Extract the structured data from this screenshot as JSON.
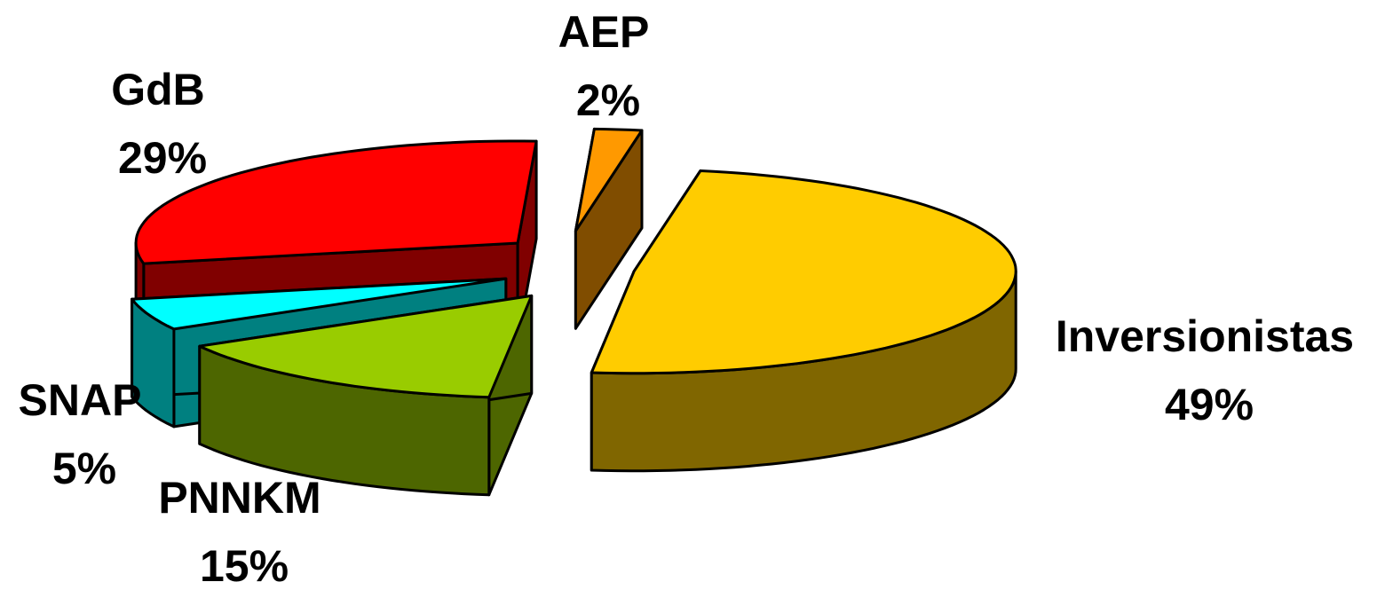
{
  "chart_data": {
    "type": "pie",
    "categories": [
      "Inversionistas",
      "PNNKM",
      "SNAP",
      "GdB",
      "AEP"
    ],
    "values": [
      49,
      15,
      5,
      29,
      2
    ],
    "value_labels": [
      "49%",
      "15%",
      "5%",
      "29%",
      "2%"
    ],
    "colors": [
      "#ffcc00",
      "#99cc00",
      "#00ffff",
      "#ff0000",
      "#ff9900"
    ]
  }
}
